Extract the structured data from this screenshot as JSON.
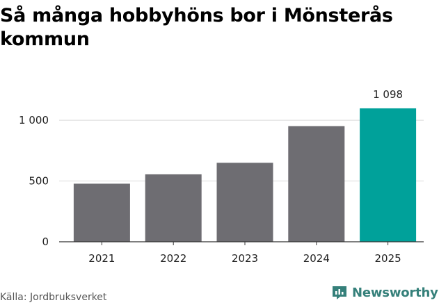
{
  "title": "Så många hobbyhöns bor i Mönsterås kommun",
  "source": "Källa: Jordbruksverket",
  "brand": "Newsworthy",
  "colors": {
    "bar": "#6e6d72",
    "highlight": "#00a19a",
    "grid": "#d9d9d9",
    "axis": "#333333",
    "brand": "#35807a"
  },
  "chart_data": {
    "type": "bar",
    "categories": [
      "2021",
      "2022",
      "2023",
      "2024",
      "2025"
    ],
    "values": [
      478,
      555,
      650,
      952,
      1098
    ],
    "ylim": [
      0,
      1100
    ],
    "yticks": [
      0,
      500,
      1000
    ],
    "ytick_labels": [
      "0",
      "500",
      "1 000"
    ],
    "highlight_index": 4,
    "data_labels": [
      "",
      "",
      "",
      "",
      "1 098"
    ],
    "grid": true
  }
}
